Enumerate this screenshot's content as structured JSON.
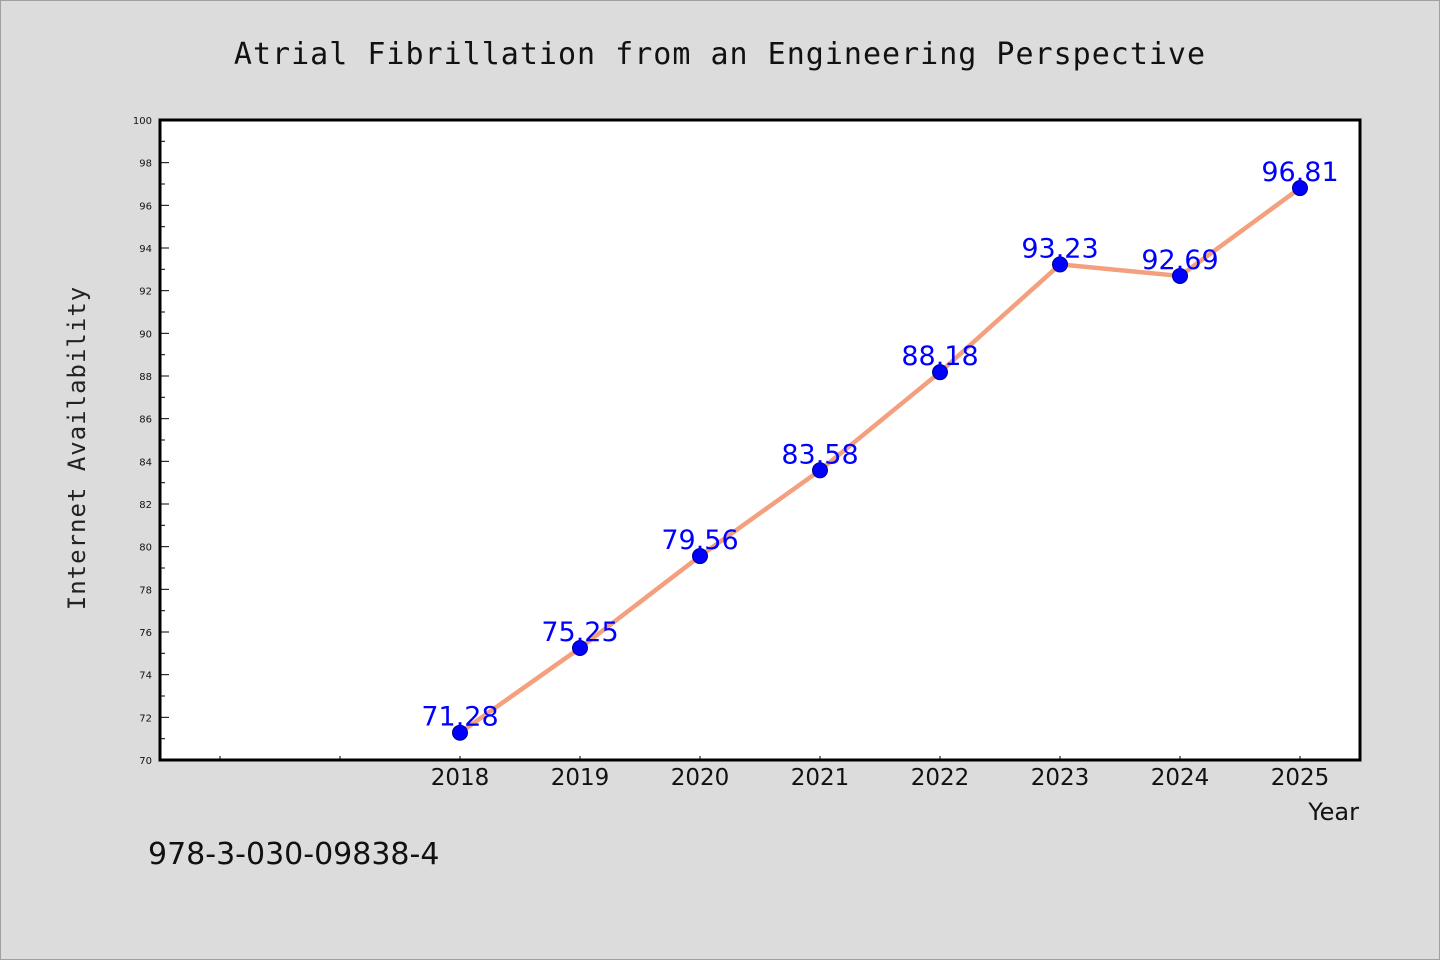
{
  "chart_data": {
    "type": "line",
    "title": "Atrial Fibrillation from an Engineering Perspective",
    "xlabel": "Year",
    "ylabel": "Internet Availability",
    "x": [
      "2018",
      "2019",
      "2020",
      "2021",
      "2022",
      "2023",
      "2024",
      "2025"
    ],
    "series": [
      {
        "values": [
          71.28,
          75.25,
          79.56,
          83.58,
          88.18,
          93.23,
          92.69,
          96.81
        ]
      }
    ],
    "data_labels": [
      "71.28",
      "75.25",
      "79.56",
      "83.58",
      "88.18",
      "93.23",
      "92.69",
      "96.81"
    ],
    "ylim": [
      70,
      100
    ],
    "yticks": [
      "70",
      "72",
      "74",
      "76",
      "78",
      "80",
      "82",
      "84",
      "86",
      "88",
      "90",
      "92",
      "94",
      "96",
      "98",
      "100"
    ],
    "grid": false,
    "line_color": "#f4a07e",
    "marker_color": "#0000ff",
    "label_color": "#0000ff"
  },
  "footer_text": "978-3-030-09838-4"
}
